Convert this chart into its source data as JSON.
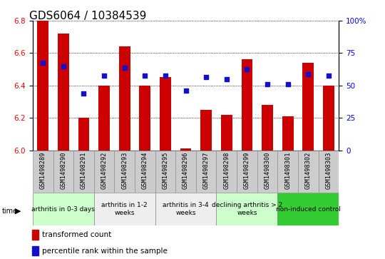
{
  "title": "GDS6064 / 10384539",
  "samples": [
    "GSM1498289",
    "GSM1498290",
    "GSM1498291",
    "GSM1498292",
    "GSM1498293",
    "GSM1498294",
    "GSM1498295",
    "GSM1498296",
    "GSM1498297",
    "GSM1498298",
    "GSM1498299",
    "GSM1498300",
    "GSM1498301",
    "GSM1498302",
    "GSM1498303"
  ],
  "bar_values": [
    6.8,
    6.72,
    6.2,
    6.4,
    6.64,
    6.4,
    6.45,
    6.01,
    6.25,
    6.22,
    6.56,
    6.28,
    6.21,
    6.54,
    6.4
  ],
  "dot_values": [
    6.54,
    6.52,
    6.35,
    6.46,
    6.51,
    6.46,
    6.46,
    6.37,
    6.45,
    6.44,
    6.5,
    6.41,
    6.41,
    6.47,
    6.46
  ],
  "bar_color": "#cc0000",
  "dot_color": "#1111cc",
  "ylim_left": [
    6.0,
    6.8
  ],
  "ylim_right": [
    0,
    100
  ],
  "yticks_left": [
    6.0,
    6.2,
    6.4,
    6.6,
    6.8
  ],
  "yticks_right": [
    0,
    25,
    50,
    75,
    100
  ],
  "ytick_labels_right": [
    "0",
    "25",
    "50",
    "75",
    "100%"
  ],
  "groups": [
    {
      "label": "arthritis in 0-3 days",
      "start": 0,
      "end": 3,
      "color": "#ccffcc"
    },
    {
      "label": "arthritis in 1-2\nweeks",
      "start": 3,
      "end": 6,
      "color": "#eeeeee"
    },
    {
      "label": "arthritis in 3-4\nweeks",
      "start": 6,
      "end": 9,
      "color": "#eeeeee"
    },
    {
      "label": "declining arthritis > 2\nweeks",
      "start": 9,
      "end": 12,
      "color": "#ccffcc"
    },
    {
      "label": "non-induced control",
      "start": 12,
      "end": 15,
      "color": "#33cc33"
    }
  ],
  "bar_bottom": 6.0,
  "title_fontsize": 11,
  "tick_fontsize": 7.5,
  "legend_bar_label": "transformed count",
  "legend_dot_label": "percentile rank within the sample"
}
